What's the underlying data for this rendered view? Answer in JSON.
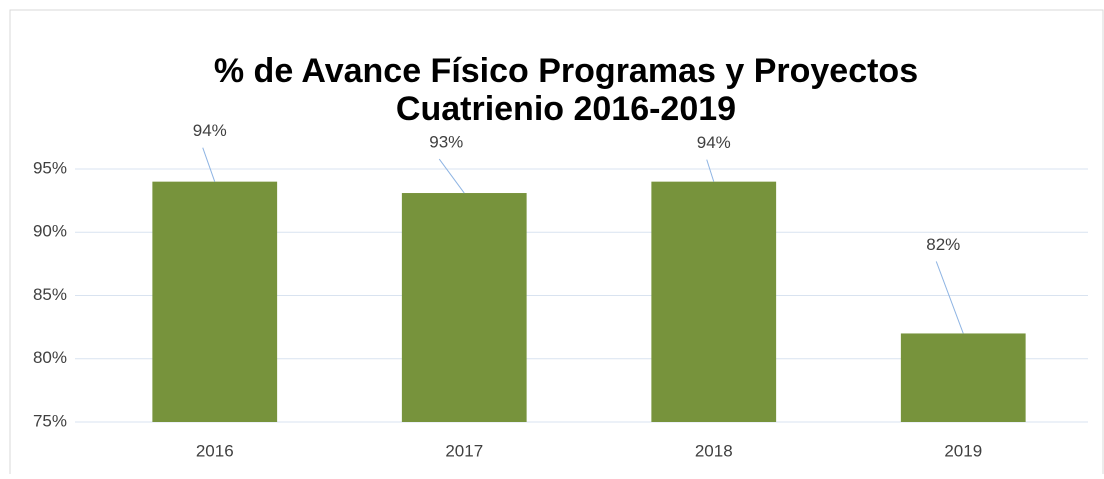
{
  "chart_data": {
    "type": "bar",
    "title": [
      "% de Avance Físico Programas y Proyectos",
      "Cuatrienio 2016-2019"
    ],
    "categories": [
      "2016",
      "2017",
      "2018",
      "2019"
    ],
    "values": [
      94,
      93.1,
      94,
      82
    ],
    "value_labels": [
      "94%",
      "93%",
      "94%",
      "82%"
    ],
    "color": "#77933c",
    "ylim": [
      75,
      95
    ],
    "yticks": [
      {
        "value": 75,
        "label": "75%"
      },
      {
        "value": 80,
        "label": "80%"
      },
      {
        "value": 85,
        "label": "85%"
      },
      {
        "value": 90,
        "label": "90%"
      },
      {
        "value": 95,
        "label": "95%"
      }
    ],
    "grid": true
  }
}
